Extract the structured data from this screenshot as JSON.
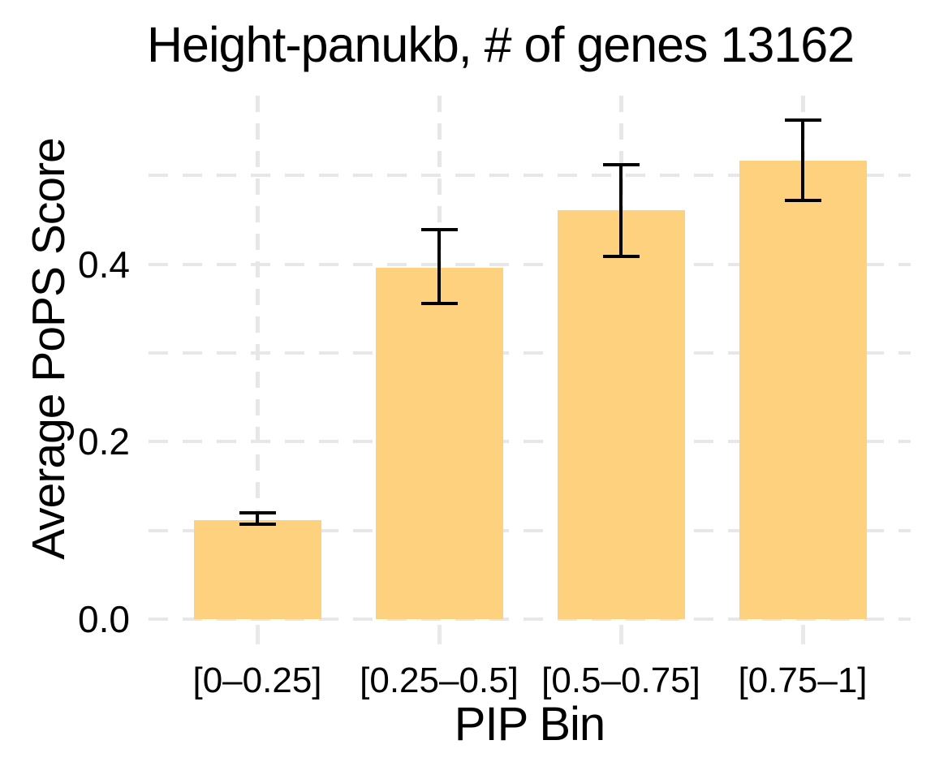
{
  "chart_data": {
    "type": "bar",
    "title": "Height-panukb, # of genes 13162",
    "xlabel": "PIP Bin",
    "ylabel": "Average PoPS Score",
    "categories": [
      "[0–0.25]",
      "[0.25–0.5]",
      "[0.5–0.75]",
      "[0.75–1]"
    ],
    "values": [
      0.112,
      0.396,
      0.461,
      0.517
    ],
    "error_low": [
      0.107,
      0.356,
      0.409,
      0.472
    ],
    "error_high": [
      0.12,
      0.439,
      0.512,
      0.563
    ],
    "y_ticks": [
      {
        "value": 0.0,
        "label": "0.0"
      },
      {
        "value": 0.2,
        "label": "0.2"
      },
      {
        "value": 0.4,
        "label": "0.4"
      }
    ],
    "y_gridlines": [
      0,
      0.1,
      0.2,
      0.3,
      0.4,
      0.5
    ],
    "ylim": [
      0,
      0.59
    ],
    "grid": "dashed",
    "legend": "none",
    "bar_color": "#FDD17E",
    "errorbar_color": "#000000",
    "gridline_color": "#E7E7E7",
    "tick_mark_color": "#E9E9E9",
    "text_color": "#000000"
  }
}
